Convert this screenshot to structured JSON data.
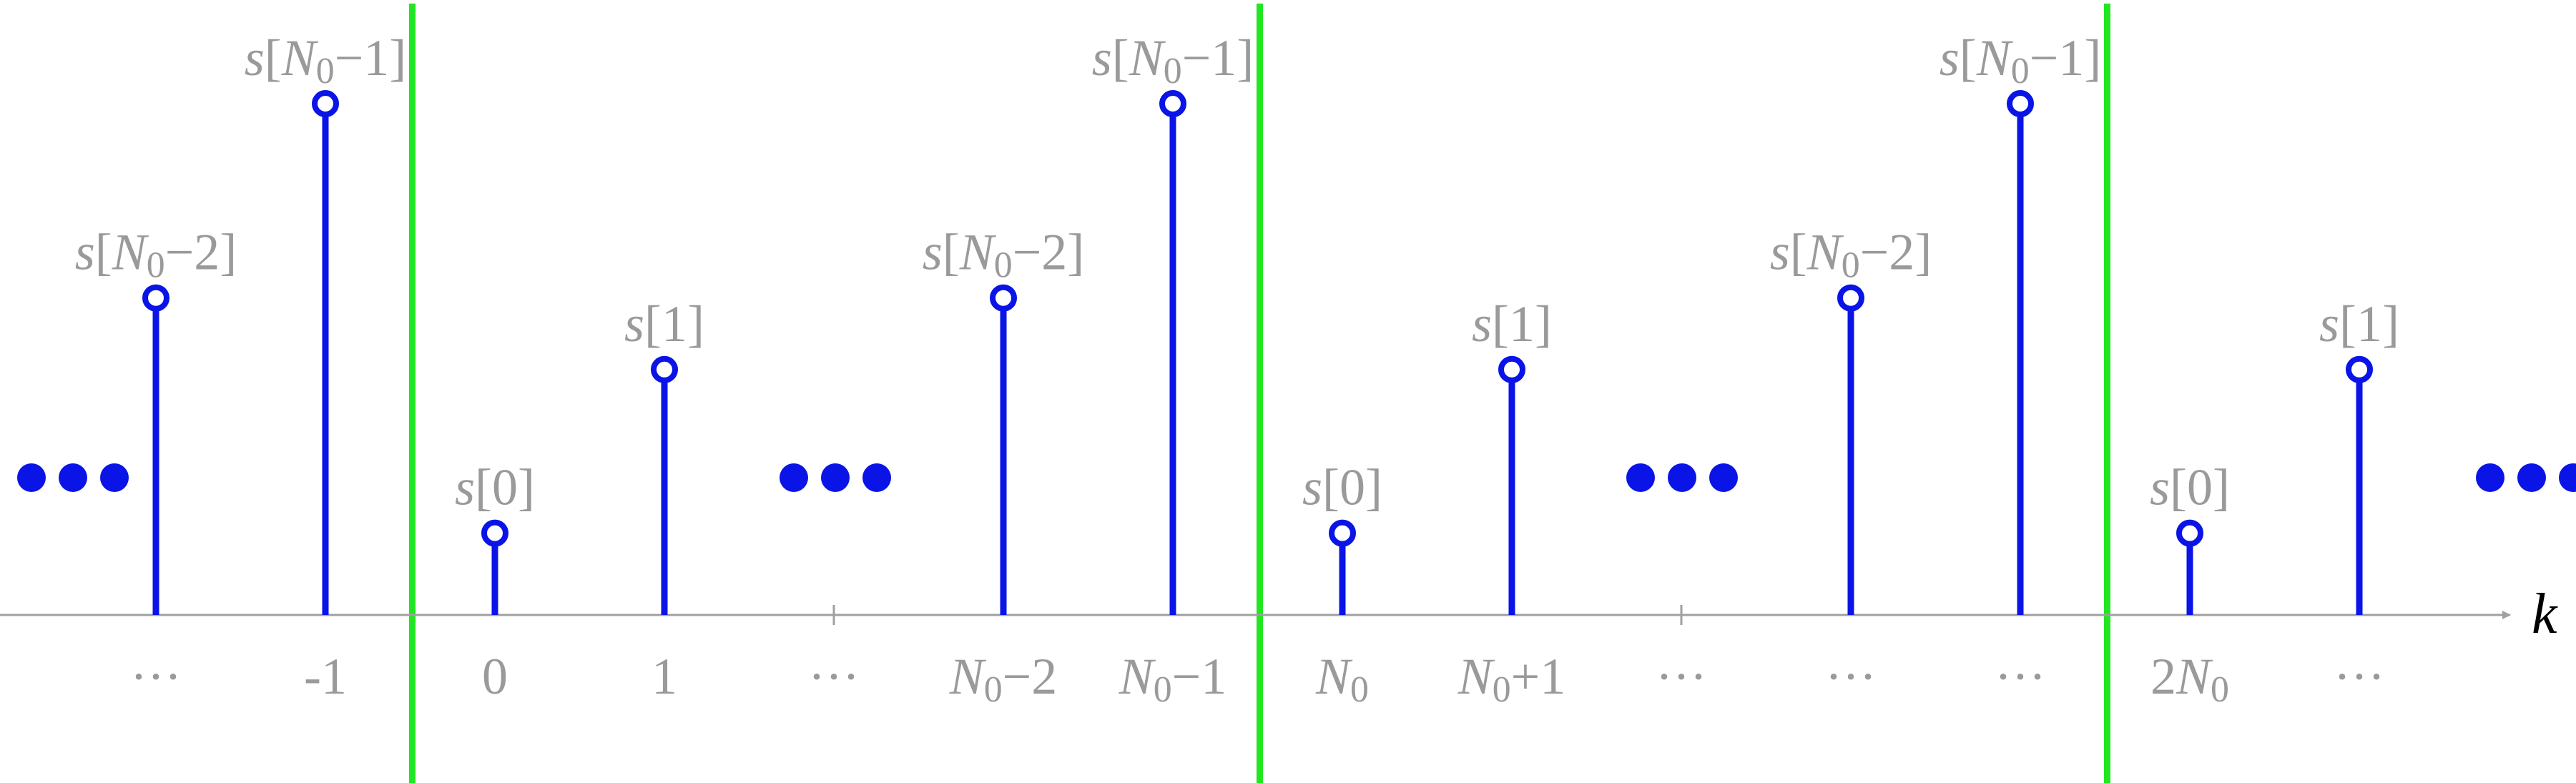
{
  "colors": {
    "stem": "#0a14e6",
    "divider": "#22e622",
    "axis": "#a0a0a0",
    "label": "#9a9a9a"
  },
  "axis": {
    "variable": "k"
  },
  "samples": [
    {
      "tick": "···",
      "label": "s[N0−2]",
      "level": 0.62
    },
    {
      "tick": "-1",
      "label": "s[N0−1]",
      "level": 1.0
    },
    {
      "tick": "0",
      "label": "s[0]",
      "level": 0.16
    },
    {
      "tick": "1",
      "label": "s[1]",
      "level": 0.48
    },
    {
      "tick": "···",
      "label": "",
      "level": null
    },
    {
      "tick": "N0−2",
      "label": "s[N0−2]",
      "level": 0.62
    },
    {
      "tick": "N0−1",
      "label": "s[N0−1]",
      "level": 1.0
    },
    {
      "tick": "N0",
      "label": "s[0]",
      "level": 0.16
    },
    {
      "tick": "N0+1",
      "label": "s[1]",
      "level": 0.48
    },
    {
      "tick": "···",
      "label": "",
      "level": null
    },
    {
      "tick": "···",
      "label": "s[N0−2]",
      "level": 0.62
    },
    {
      "tick": "···",
      "label": "s[N0−1]",
      "level": 1.0
    },
    {
      "tick": "2N0",
      "label": "s[0]",
      "level": 0.16
    },
    {
      "tick": "···",
      "label": "s[1]",
      "level": 0.48
    }
  ],
  "continuation_marks": [
    "●●●",
    "●●●",
    "●●●",
    "●●●"
  ],
  "period_dividers": 3
}
